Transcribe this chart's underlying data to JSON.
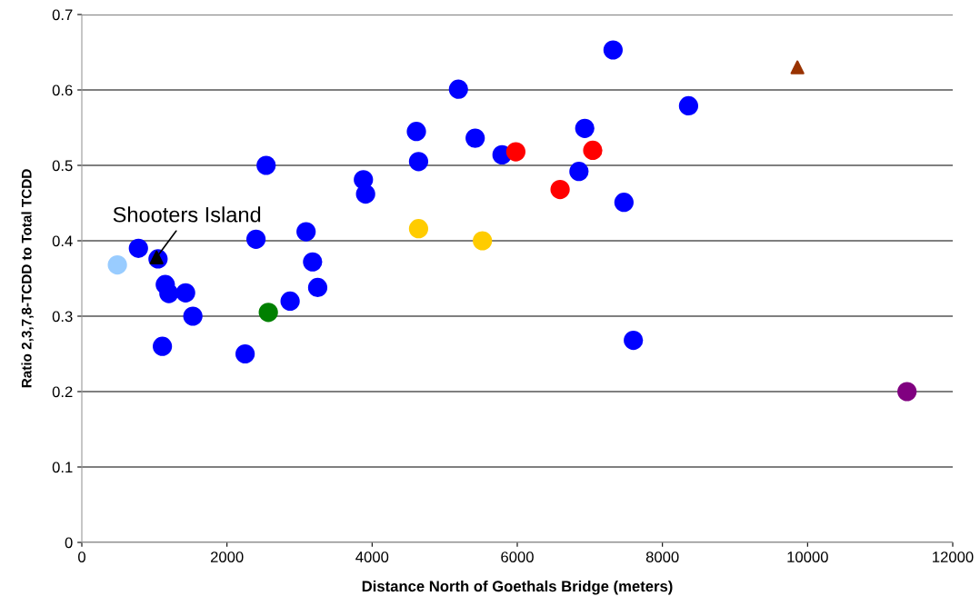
{
  "chart_data": {
    "type": "scatter",
    "xlabel": "Distance North of Goethals Bridge (meters)",
    "ylabel": "Ratio 2,3,7,8-TCDD to Total TCDD",
    "xlim": [
      0,
      12000
    ],
    "xticks": [
      0,
      2000,
      4000,
      6000,
      8000,
      10000,
      12000
    ],
    "ylim": [
      0,
      0.7
    ],
    "yticks": [
      0,
      0.1,
      0.2,
      0.3,
      0.4,
      0.5,
      0.6,
      0.7
    ],
    "grid": "y",
    "legend": false,
    "series": [
      {
        "color": "#0000ff",
        "marker": "circle",
        "x": [
          780,
          1110,
          1200,
          1530,
          2250,
          2870,
          3250,
          3910,
          4640,
          5790,
          6850,
          7320,
          7600,
          8360
        ],
        "values": [
          0.39,
          0.26,
          0.33,
          0.3,
          0.25,
          0.32,
          0.338,
          0.462,
          0.505,
          0.514,
          0.492,
          0.653,
          0.268,
          0.579
        ]
      },
      {
        "color": "#0000ff",
        "marker": "circle",
        "x": [
          1050,
          1150,
          1430,
          2400,
          2540,
          3090,
          3180,
          3880,
          4610,
          5190,
          5420,
          6930,
          7470
        ],
        "values": [
          0.376,
          0.342,
          0.331,
          0.402,
          0.5,
          0.412,
          0.372,
          0.481,
          0.545,
          0.601,
          0.536,
          0.549,
          0.451
        ]
      },
      {
        "color": "#99ccff",
        "marker": "circle",
        "x": [
          490
        ],
        "values": [
          0.368
        ]
      },
      {
        "color": "#008000",
        "marker": "circle",
        "x": [
          2570
        ],
        "values": [
          0.305
        ]
      },
      {
        "color": "#ffcc00",
        "marker": "circle",
        "x": [
          4640,
          5520
        ],
        "values": [
          0.416,
          0.4
        ]
      },
      {
        "color": "#ff0000",
        "marker": "circle",
        "x": [
          5980,
          6590
        ],
        "values": [
          0.518,
          0.468
        ]
      },
      {
        "color": "#ff0000",
        "marker": "circle",
        "x": [
          7040
        ],
        "values": [
          0.52
        ]
      },
      {
        "color": "#993300",
        "marker": "triangle",
        "x": [
          9860
        ],
        "values": [
          0.63
        ]
      },
      {
        "color": "#800080",
        "marker": "circle",
        "x": [
          11370
        ],
        "values": [
          0.2
        ]
      },
      {
        "color": "#000000",
        "marker": "triangle",
        "x": [
          1030
        ],
        "values": [
          0.378
        ]
      }
    ],
    "annotations": [
      {
        "text": "Shooters Island",
        "x": 1030,
        "y": 0.378
      }
    ]
  }
}
